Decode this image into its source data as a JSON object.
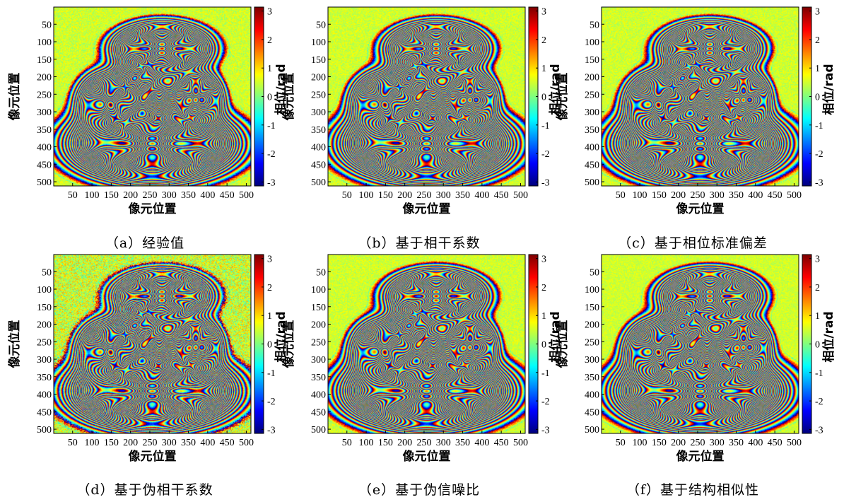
{
  "axis_label": "像元位置",
  "colorbar_label": "相位/rad",
  "chart_data": [
    {
      "type": "heatmap",
      "caption": "（a）经验值",
      "xlabel": "像元位置",
      "ylabel": "像元位置",
      "xticks": [
        50,
        100,
        150,
        200,
        250,
        300,
        350,
        400,
        450,
        500
      ],
      "yticks": [
        50,
        100,
        150,
        200,
        250,
        300,
        350,
        400,
        450,
        500
      ],
      "xlim": [
        1,
        512
      ],
      "ylim": [
        1,
        512
      ],
      "colorbar": {
        "label": "相位/rad",
        "min": -3.14,
        "max": 3.14,
        "ticks": [
          3,
          2,
          1,
          0,
          -1,
          -2,
          -3
        ]
      },
      "noise": 0.3
    },
    {
      "type": "heatmap",
      "caption": "（b）基于相干系数",
      "xlabel": "像元位置",
      "ylabel": "像元位置",
      "xticks": [
        50,
        100,
        150,
        200,
        250,
        300,
        350,
        400,
        450,
        500
      ],
      "yticks": [
        50,
        100,
        150,
        200,
        250,
        300,
        350,
        400,
        450,
        500
      ],
      "xlim": [
        1,
        512
      ],
      "ylim": [
        1,
        512
      ],
      "colorbar": {
        "label": "相位/rad",
        "min": -3.14,
        "max": 3.14,
        "ticks": [
          3,
          2,
          1,
          0,
          -1,
          -2,
          -3
        ]
      },
      "noise": 0.25
    },
    {
      "type": "heatmap",
      "caption": "（c）基于相位标准偏差",
      "xlabel": "像元位置",
      "ylabel": "像元位置",
      "xticks": [
        50,
        100,
        150,
        200,
        250,
        300,
        350,
        400,
        450,
        500
      ],
      "yticks": [
        50,
        100,
        150,
        200,
        250,
        300,
        350,
        400,
        450,
        500
      ],
      "xlim": [
        1,
        512
      ],
      "ylim": [
        1,
        512
      ],
      "colorbar": {
        "label": "相位/rad",
        "min": -3.14,
        "max": 3.14,
        "ticks": [
          3,
          2,
          1,
          0,
          -1,
          -2,
          -3
        ]
      },
      "noise": 0.25
    },
    {
      "type": "heatmap",
      "caption": "（d）基于伪相干系数",
      "xlabel": "像元位置",
      "ylabel": "像元位置",
      "xticks": [
        50,
        100,
        150,
        200,
        250,
        300,
        350,
        400,
        450,
        500
      ],
      "yticks": [
        50,
        100,
        150,
        200,
        250,
        300,
        350,
        400,
        450,
        500
      ],
      "xlim": [
        1,
        512
      ],
      "ylim": [
        1,
        512
      ],
      "colorbar": {
        "label": "相位/rad",
        "min": -3.14,
        "max": 3.14,
        "ticks": [
          3,
          2,
          1,
          0,
          -1,
          -2,
          -3
        ]
      },
      "noise": 0.65
    },
    {
      "type": "heatmap",
      "caption": "（e）基于伪信噪比",
      "xlabel": "像元位置",
      "ylabel": "像元位置",
      "xticks": [
        50,
        100,
        150,
        200,
        250,
        300,
        350,
        400,
        450,
        500
      ],
      "yticks": [
        50,
        100,
        150,
        200,
        250,
        300,
        350,
        400,
        450,
        500
      ],
      "xlim": [
        1,
        512
      ],
      "ylim": [
        1,
        512
      ],
      "colorbar": {
        "label": "相位/rad",
        "min": -3.14,
        "max": 3.14,
        "ticks": [
          3,
          2,
          1,
          0,
          -1,
          -2,
          -3
        ]
      },
      "noise": 0.25
    },
    {
      "type": "heatmap",
      "caption": "（f）基于结构相似性",
      "xlabel": "像元位置",
      "ylabel": "像元位置",
      "xticks": [
        50,
        100,
        150,
        200,
        250,
        300,
        350,
        400,
        450,
        500
      ],
      "yticks": [
        50,
        100,
        150,
        200,
        250,
        300,
        350,
        400,
        450,
        500
      ],
      "xlim": [
        1,
        512
      ],
      "ylim": [
        1,
        512
      ],
      "colorbar": {
        "label": "相位/rad",
        "min": -3.14,
        "max": 3.14,
        "ticks": [
          3,
          2,
          1,
          0,
          -1,
          -2,
          -3
        ]
      },
      "noise": 0.2
    }
  ]
}
